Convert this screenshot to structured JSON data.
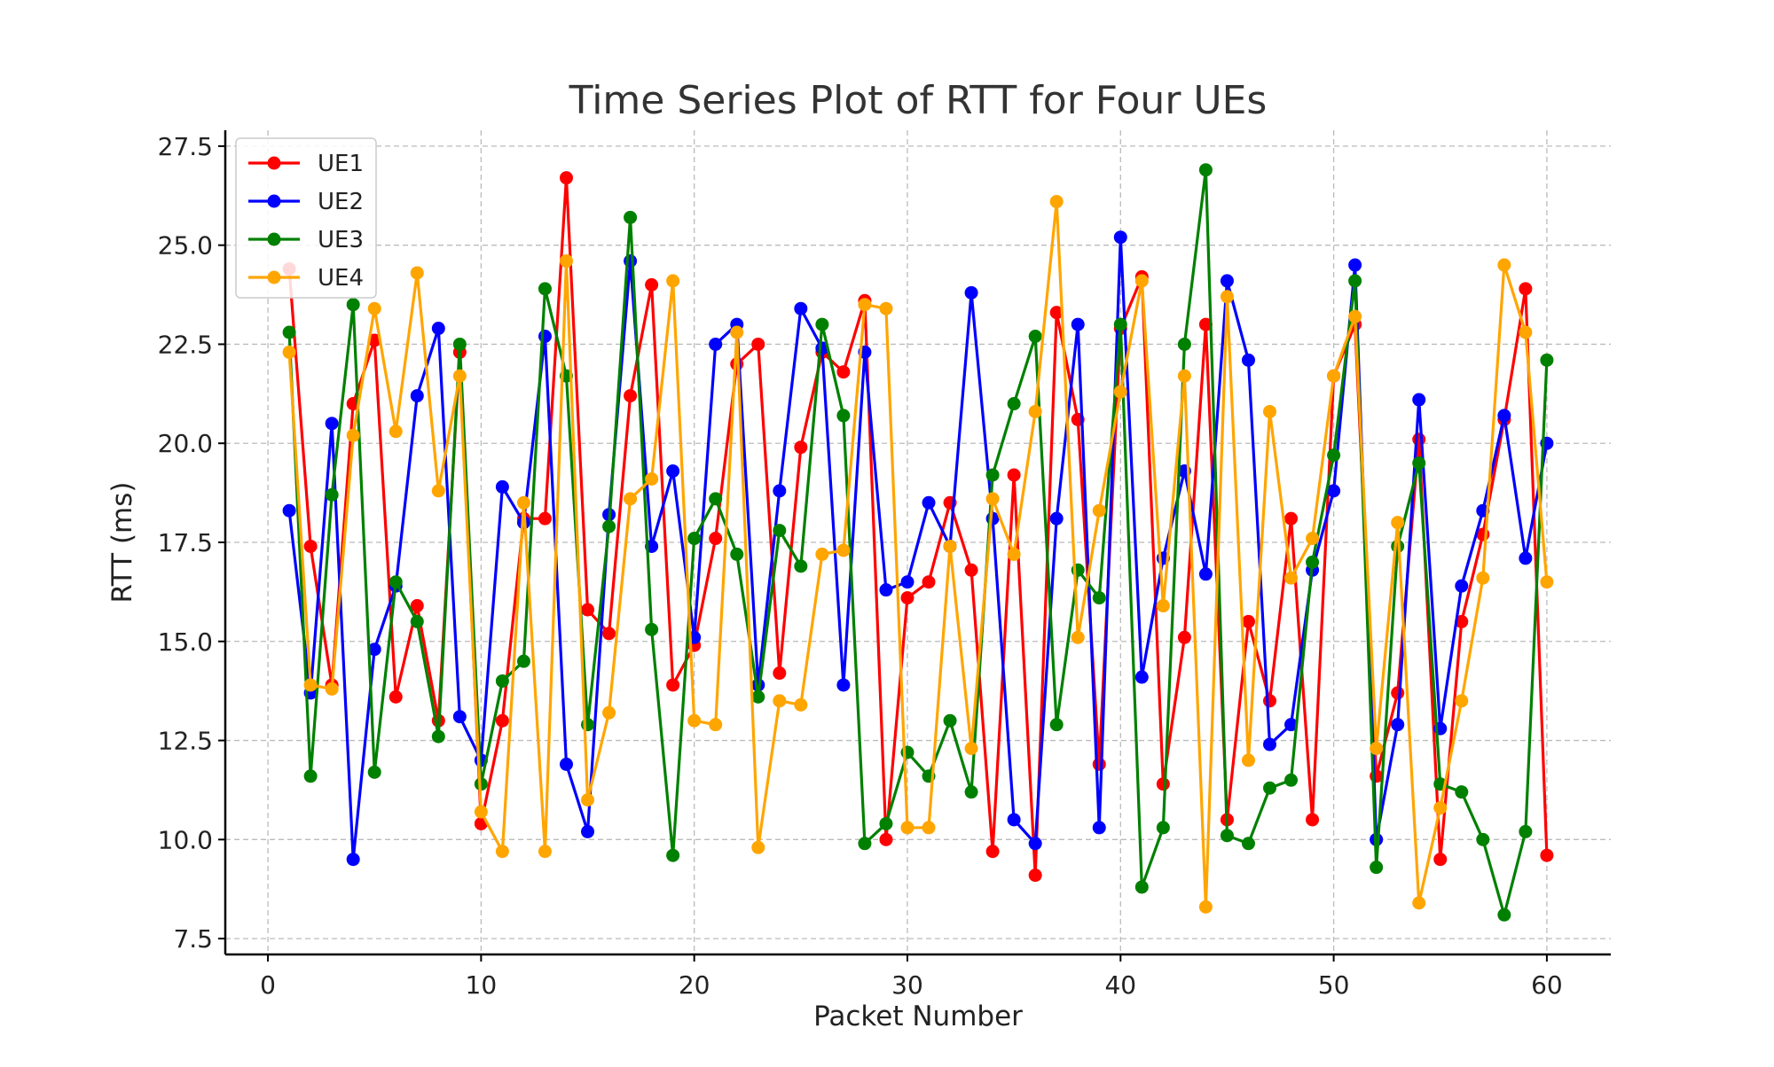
{
  "chart_data": {
    "type": "line",
    "title": "Time Series Plot of RTT for Four UEs",
    "xlabel": "Packet Number",
    "ylabel": "RTT (ms)",
    "xlim": [
      -2,
      63
    ],
    "ylim": [
      7.1,
      27.9
    ],
    "xticks": [
      0,
      10,
      20,
      30,
      40,
      50,
      60
    ],
    "yticks": [
      7.5,
      10.0,
      12.5,
      15.0,
      17.5,
      20.0,
      22.5,
      25.0,
      27.5
    ],
    "xtick_labels": [
      "0",
      "10",
      "20",
      "30",
      "40",
      "50",
      "60"
    ],
    "ytick_labels": [
      "7.5",
      "10.0",
      "12.5",
      "15.0",
      "17.5",
      "20.0",
      "22.5",
      "25.0",
      "27.5"
    ],
    "grid": true,
    "legend_position": "top-left",
    "x": [
      1,
      2,
      3,
      4,
      5,
      6,
      7,
      8,
      9,
      10,
      11,
      12,
      13,
      14,
      15,
      16,
      17,
      18,
      19,
      20,
      21,
      22,
      23,
      24,
      25,
      26,
      27,
      28,
      29,
      30,
      31,
      32,
      33,
      34,
      35,
      36,
      37,
      38,
      39,
      40,
      41,
      42,
      43,
      44,
      45,
      46,
      47,
      48,
      49,
      50,
      51,
      52,
      53,
      54,
      55,
      56,
      57,
      58,
      59,
      60
    ],
    "series": [
      {
        "name": "UE1",
        "color": "#ff0000",
        "values": [
          24.4,
          17.4,
          13.9,
          21.0,
          22.6,
          13.6,
          15.9,
          13.0,
          22.3,
          10.4,
          13.0,
          18.1,
          18.1,
          26.7,
          15.8,
          15.2,
          21.2,
          24.0,
          13.9,
          14.9,
          17.6,
          22.0,
          22.5,
          14.2,
          19.9,
          22.3,
          21.8,
          23.6,
          10.0,
          16.1,
          16.5,
          18.5,
          16.8,
          9.7,
          19.2,
          9.1,
          23.3,
          20.6,
          11.9,
          22.9,
          24.2,
          11.4,
          15.1,
          23.0,
          10.5,
          15.5,
          13.5,
          18.1,
          10.5,
          21.7,
          23.0,
          11.6,
          13.7,
          20.1,
          9.5,
          15.5,
          17.7,
          20.6,
          23.9,
          9.6
        ]
      },
      {
        "name": "UE2",
        "color": "#0000ff",
        "values": [
          18.3,
          13.7,
          20.5,
          9.5,
          14.8,
          16.4,
          21.2,
          22.9,
          13.1,
          12.0,
          18.9,
          18.0,
          22.7,
          11.9,
          10.2,
          18.2,
          24.6,
          17.4,
          19.3,
          15.1,
          22.5,
          23.0,
          13.9,
          18.8,
          23.4,
          22.4,
          13.9,
          22.3,
          16.3,
          16.5,
          18.5,
          17.4,
          23.8,
          18.1,
          10.5,
          9.9,
          18.1,
          23.0,
          10.3,
          25.2,
          14.1,
          17.1,
          19.3,
          16.7,
          24.1,
          22.1,
          12.4,
          12.9,
          16.8,
          18.8,
          24.5,
          10.0,
          12.9,
          21.1,
          12.8,
          16.4,
          18.3,
          20.7,
          17.1,
          20.0
        ]
      },
      {
        "name": "UE3",
        "color": "#008000",
        "values": [
          22.8,
          11.6,
          18.7,
          23.5,
          11.7,
          16.5,
          15.5,
          12.6,
          22.5,
          11.4,
          14.0,
          14.5,
          23.9,
          21.7,
          12.9,
          17.9,
          25.7,
          15.3,
          9.6,
          17.6,
          18.6,
          17.2,
          13.6,
          17.8,
          16.9,
          23.0,
          20.7,
          9.9,
          10.4,
          12.2,
          11.6,
          13.0,
          11.2,
          19.2,
          21.0,
          22.7,
          12.9,
          16.8,
          16.1,
          23.0,
          8.8,
          10.3,
          22.5,
          26.9,
          10.1,
          9.9,
          11.3,
          11.5,
          17.0,
          19.7,
          24.1,
          9.3,
          17.4,
          19.5,
          11.4,
          11.2,
          10.0,
          8.1,
          10.2,
          22.1
        ]
      },
      {
        "name": "UE4",
        "color": "#ffa500",
        "values": [
          22.3,
          13.9,
          13.8,
          20.2,
          23.4,
          20.3,
          24.3,
          18.8,
          21.7,
          10.7,
          9.7,
          18.5,
          9.7,
          24.6,
          11.0,
          13.2,
          18.6,
          19.1,
          24.1,
          13.0,
          12.9,
          22.8,
          9.8,
          13.5,
          13.4,
          17.2,
          17.3,
          23.5,
          23.4,
          10.3,
          10.3,
          17.4,
          12.3,
          18.6,
          17.2,
          20.8,
          26.1,
          15.1,
          18.3,
          21.3,
          24.1,
          15.9,
          21.7,
          8.3,
          23.7,
          12.0,
          20.8,
          16.6,
          17.6,
          21.7,
          23.2,
          12.3,
          18.0,
          8.4,
          10.8,
          13.5,
          16.6,
          24.5,
          22.8,
          16.5
        ]
      }
    ]
  }
}
